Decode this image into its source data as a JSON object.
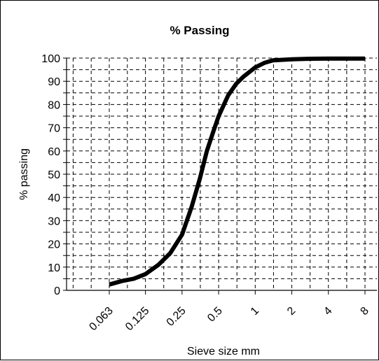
{
  "chart_data": {
    "type": "line",
    "title": "% Passing",
    "xlabel": "Sieve size mm",
    "ylabel": "% passing",
    "x_scale": "log2",
    "x_ticks": [
      "0.063",
      "0.125",
      "0.25",
      "0.5",
      "1",
      "2",
      "4",
      "8"
    ],
    "y_ticks": [
      "0",
      "10",
      "20",
      "30",
      "40",
      "50",
      "60",
      "70",
      "80",
      "90",
      "100"
    ],
    "ylim": [
      0,
      100
    ],
    "grid": "dashed",
    "line_color": "#000000",
    "series": [
      {
        "name": "",
        "x": [
          0.063,
          0.08,
          0.1,
          0.125,
          0.16,
          0.2,
          0.25,
          0.3,
          0.35,
          0.4,
          0.45,
          0.5,
          0.6,
          0.7,
          0.8,
          1.0,
          1.2,
          1.4,
          2.0,
          2.8,
          4.0,
          8.0
        ],
        "y": [
          2.5,
          4,
          5,
          7,
          11,
          16,
          24,
          36,
          48,
          60,
          68,
          75,
          84,
          89,
          92,
          96,
          98,
          99,
          99.5,
          99.7,
          99.8,
          99.8
        ]
      }
    ]
  }
}
